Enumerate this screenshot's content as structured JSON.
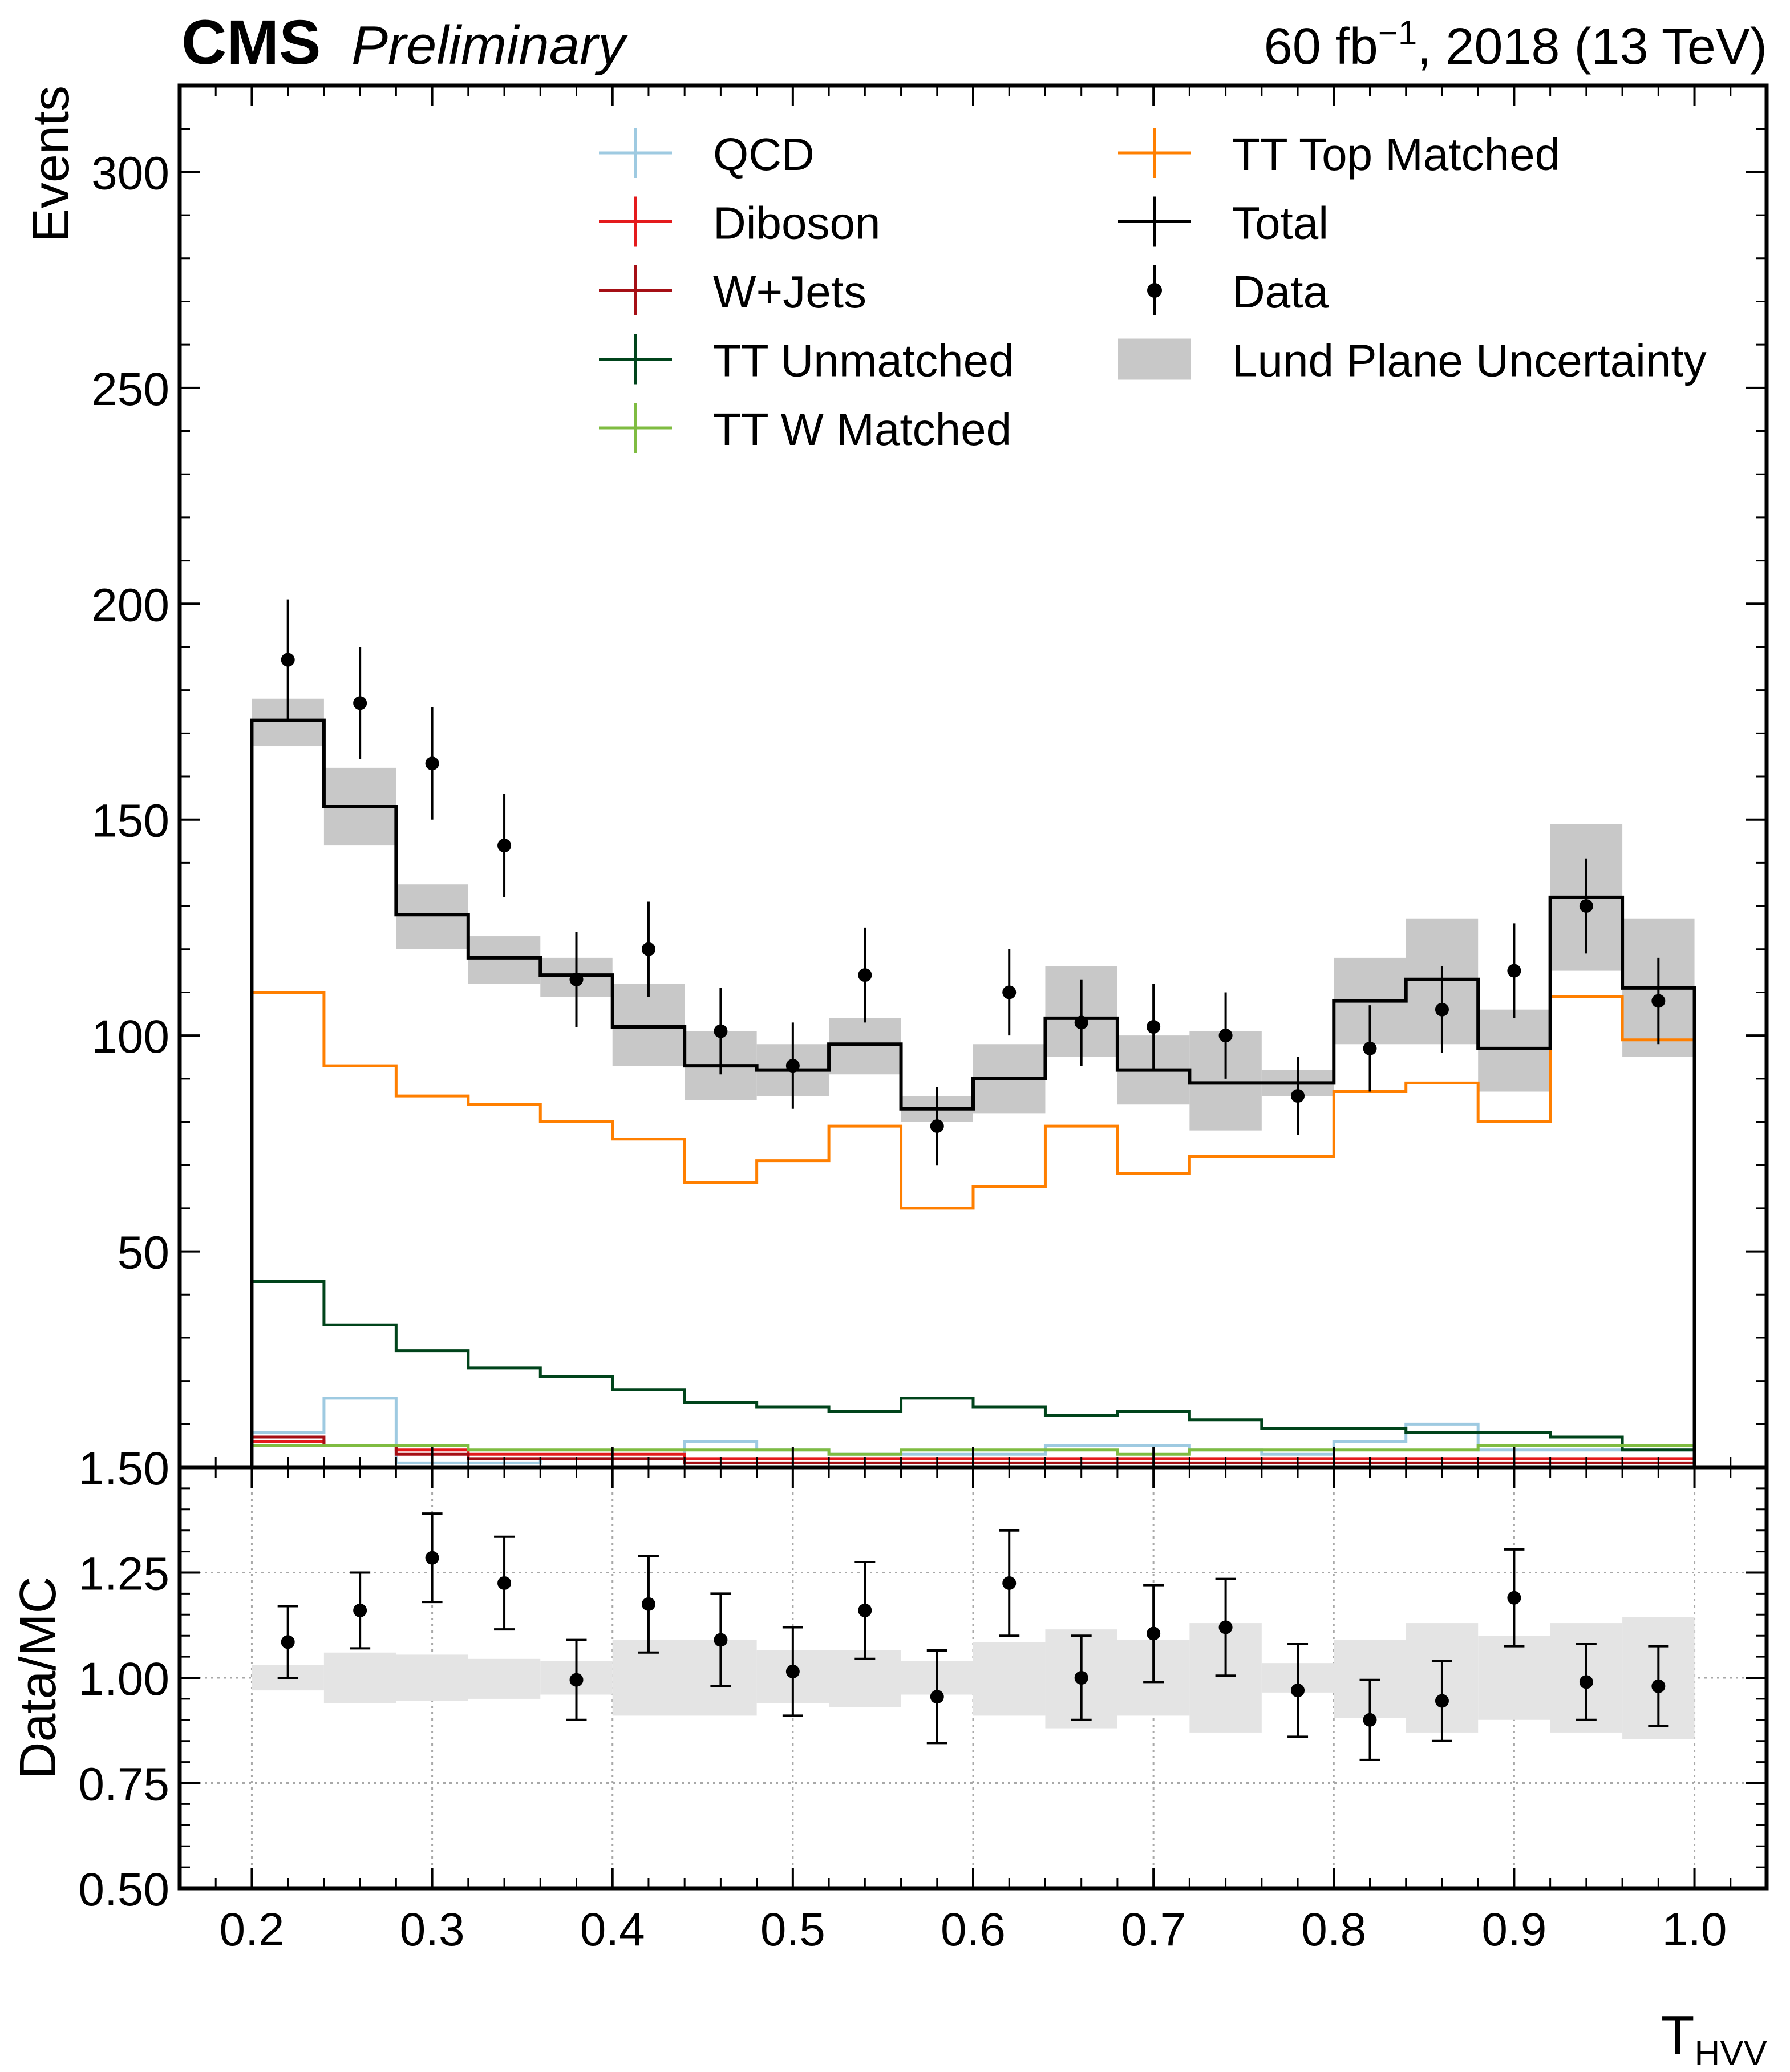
{
  "header": {
    "experiment": "CMS",
    "status": "Preliminary",
    "lumi_prefix": "60 fb",
    "lumi_sup": "−1",
    "lumi_suffix": ", 2018 (13 TeV)"
  },
  "colors": {
    "QCD": "#9ecae1",
    "Diboson": "#e41a1c",
    "W+Jets": "#a50f15",
    "TT Unmatched": "#00441b",
    "TT W Matched": "#7fbc41",
    "TT Top Matched": "#ff7f00",
    "Total": "#000000",
    "Data": "#000000",
    "band": "#c8c8c8",
    "ratio_band": "#e4e4e4"
  },
  "chart_data": [
    {
      "type": "histogram",
      "panel": "main",
      "ylabel": "Events",
      "ylim": [
        0,
        320
      ],
      "yticks": [
        50,
        100,
        150,
        200,
        250,
        300
      ],
      "bin_edges": [
        0.2,
        0.24,
        0.28,
        0.32,
        0.36,
        0.4,
        0.44,
        0.48,
        0.52,
        0.56,
        0.6,
        0.64,
        0.68,
        0.72,
        0.76,
        0.8,
        0.84,
        0.88,
        0.92,
        0.96,
        1.0
      ],
      "series": [
        {
          "name": "QCD",
          "kind": "step",
          "values": [
            8,
            16,
            1,
            1,
            2,
            2,
            6,
            4,
            3,
            3,
            3,
            5,
            5,
            4,
            3,
            6,
            10,
            4,
            4,
            4
          ]
        },
        {
          "name": "Diboson",
          "kind": "step",
          "values": [
            6,
            5,
            4,
            3,
            3,
            3,
            2,
            2,
            2,
            2,
            2,
            2,
            2,
            2,
            2,
            2,
            2,
            2,
            2,
            2
          ]
        },
        {
          "name": "W+Jets",
          "kind": "step",
          "values": [
            7,
            5,
            3,
            2,
            2,
            2,
            1,
            1,
            1,
            1,
            1,
            1,
            1,
            1,
            1,
            1,
            1,
            1,
            1,
            1
          ]
        },
        {
          "name": "TT Unmatched",
          "kind": "step",
          "values": [
            43,
            33,
            27,
            23,
            21,
            18,
            15,
            14,
            13,
            16,
            14,
            12,
            13,
            11,
            9,
            9,
            8,
            8,
            7,
            4
          ]
        },
        {
          "name": "TT W Matched",
          "kind": "step",
          "values": [
            5,
            5,
            5,
            4,
            4,
            4,
            4,
            4,
            3,
            4,
            4,
            4,
            3,
            4,
            4,
            4,
            4,
            5,
            5,
            5
          ]
        },
        {
          "name": "TT Top Matched",
          "kind": "step",
          "values": [
            110,
            93,
            86,
            84,
            80,
            76,
            66,
            71,
            79,
            60,
            65,
            79,
            68,
            72,
            72,
            87,
            89,
            80,
            109,
            99
          ]
        },
        {
          "name": "Total",
          "kind": "step",
          "values": [
            173,
            153,
            128,
            118,
            114,
            102,
            93,
            92,
            98,
            83,
            90,
            104,
            92,
            89,
            89,
            108,
            113,
            97,
            132,
            111
          ]
        }
      ],
      "band": {
        "name": "Lund Plane Uncertainty",
        "low": [
          167,
          144,
          120,
          112,
          109,
          93,
          85,
          86,
          91,
          80,
          82,
          95,
          84,
          78,
          86,
          98,
          98,
          87,
          115,
          95
        ],
        "high": [
          178,
          162,
          135,
          123,
          118,
          112,
          101,
          98,
          104,
          86,
          98,
          116,
          100,
          101,
          92,
          118,
          127,
          106,
          149,
          127
        ]
      },
      "data": {
        "name": "Data",
        "x": [
          0.22,
          0.26,
          0.3,
          0.34,
          0.38,
          0.42,
          0.46,
          0.5,
          0.54,
          0.58,
          0.62,
          0.66,
          0.7,
          0.74,
          0.78,
          0.82,
          0.86,
          0.9,
          0.94,
          0.98
        ],
        "y": [
          187,
          177,
          163,
          144,
          113,
          120,
          101,
          93,
          114,
          79,
          110,
          103,
          102,
          100,
          86,
          97,
          106,
          115,
          130,
          108
        ],
        "yerr": [
          14,
          13,
          13,
          12,
          11,
          11,
          10,
          10,
          11,
          9,
          10,
          10,
          10,
          10,
          9,
          10,
          10,
          11,
          11,
          10
        ]
      },
      "legend": {
        "placement": "top",
        "left_column": [
          "QCD",
          "Diboson",
          "W+Jets",
          "TT Unmatched",
          "TT W Matched"
        ],
        "right_column": [
          "TT Top Matched",
          "Total",
          "Data",
          "Lund Plane Uncertainty"
        ]
      }
    },
    {
      "type": "errorbar",
      "panel": "ratio",
      "ylabel": "Data/MC",
      "xlabel_main": "T",
      "xlabel_sub": "HVV",
      "ylim": [
        0.5,
        1.5
      ],
      "yticks": [
        "0.50",
        "0.75",
        "1.00",
        "1.25",
        "1.50"
      ],
      "xlim": [
        0.16,
        1.04
      ],
      "xticks": [
        "0.2",
        "0.3",
        "0.4",
        "0.5",
        "0.6",
        "0.7",
        "0.8",
        "0.9",
        "1.0"
      ],
      "grid": true,
      "band": {
        "low": [
          0.97,
          0.94,
          0.945,
          0.95,
          0.96,
          0.91,
          0.91,
          0.94,
          0.93,
          0.96,
          0.91,
          0.88,
          0.91,
          0.87,
          0.965,
          0.905,
          0.87,
          0.9,
          0.87,
          0.855
        ],
        "high": [
          1.03,
          1.06,
          1.055,
          1.045,
          1.04,
          1.09,
          1.09,
          1.065,
          1.065,
          1.04,
          1.085,
          1.115,
          1.09,
          1.13,
          1.035,
          1.09,
          1.13,
          1.1,
          1.13,
          1.145
        ]
      },
      "points": {
        "x": [
          0.22,
          0.26,
          0.3,
          0.34,
          0.38,
          0.42,
          0.46,
          0.5,
          0.54,
          0.58,
          0.62,
          0.66,
          0.7,
          0.74,
          0.78,
          0.82,
          0.86,
          0.9,
          0.94,
          0.98
        ],
        "y": [
          1.085,
          1.16,
          1.285,
          1.225,
          0.995,
          1.175,
          1.09,
          1.015,
          1.16,
          0.955,
          1.225,
          1.0,
          1.105,
          1.12,
          0.97,
          0.9,
          0.945,
          1.19,
          0.99,
          0.98
        ],
        "yerr": [
          0.085,
          0.09,
          0.105,
          0.11,
          0.095,
          0.115,
          0.11,
          0.105,
          0.115,
          0.11,
          0.125,
          0.1,
          0.115,
          0.115,
          0.11,
          0.095,
          0.095,
          0.115,
          0.09,
          0.095
        ]
      }
    }
  ]
}
